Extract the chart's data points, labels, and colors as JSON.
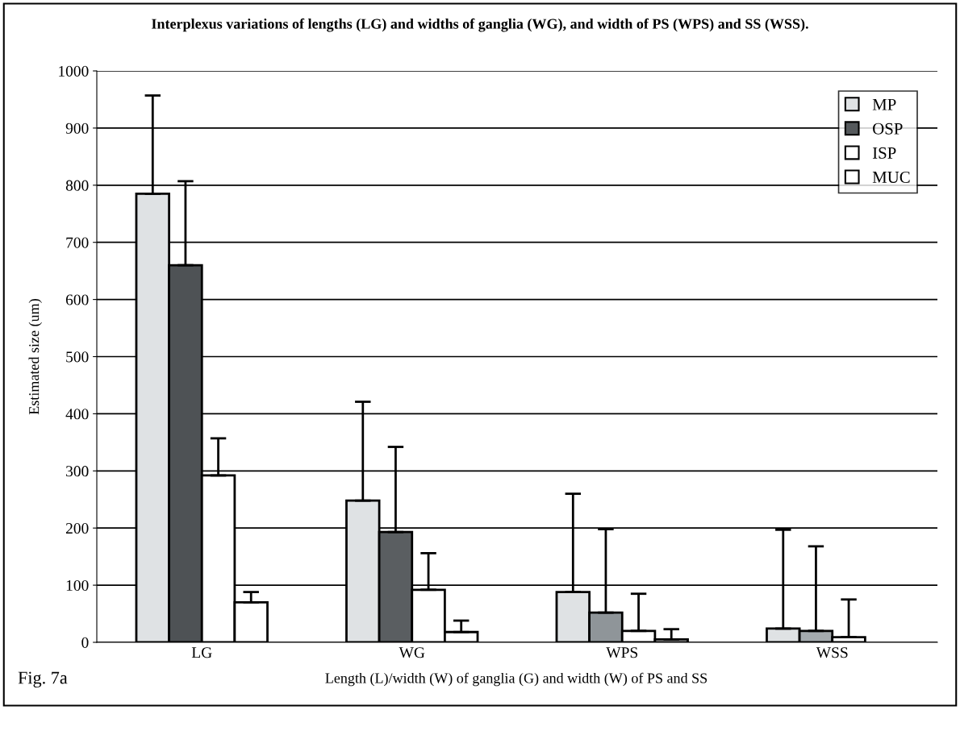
{
  "chart_data": {
    "type": "bar",
    "title": "Interplexus variations of lengths (LG) and widths of ganglia (WG), and width of PS (WPS) and SS (WSS).",
    "xlabel": "Length (L)/width (W) of ganglia (G) and width (W) of PS and SS",
    "ylabel": "Estimated size (um)",
    "categories": [
      "LG",
      "WG",
      "WPS",
      "WSS"
    ],
    "series": [
      {
        "name": "MP",
        "color": "#dfe2e4",
        "values": [
          785,
          248,
          88,
          24
        ],
        "errors": [
          [
            785,
            957
          ],
          [
            248,
            421
          ],
          [
            88,
            260
          ],
          [
            24,
            197
          ]
        ]
      },
      {
        "name": "OSP",
        "color": "#55595c",
        "colors": [
          "#4e5255",
          "#5a5e61",
          "#8f9599",
          "#a4aaae"
        ],
        "values": [
          660,
          193,
          52,
          20
        ],
        "errors": [
          [
            660,
            807
          ],
          [
            193,
            342
          ],
          [
            52,
            198
          ],
          [
            20,
            168
          ]
        ]
      },
      {
        "name": "ISP",
        "color": "#ffffff",
        "values": [
          292,
          92,
          20,
          9
        ],
        "errors": [
          [
            292,
            357
          ],
          [
            92,
            156
          ],
          [
            20,
            85
          ],
          [
            9,
            75
          ]
        ]
      },
      {
        "name": "MUC",
        "color": "#ffffff",
        "values": [
          70,
          18,
          5,
          null
        ],
        "errors": [
          [
            70,
            88
          ],
          [
            18,
            38
          ],
          [
            5,
            23
          ],
          null
        ]
      }
    ],
    "ylim": [
      0,
      1000
    ],
    "yticks": [
      0,
      100,
      200,
      300,
      400,
      500,
      600,
      700,
      800,
      900,
      1000
    ],
    "grid": "y",
    "legend": "top right",
    "annotations": [
      "Fig. 7a"
    ]
  }
}
